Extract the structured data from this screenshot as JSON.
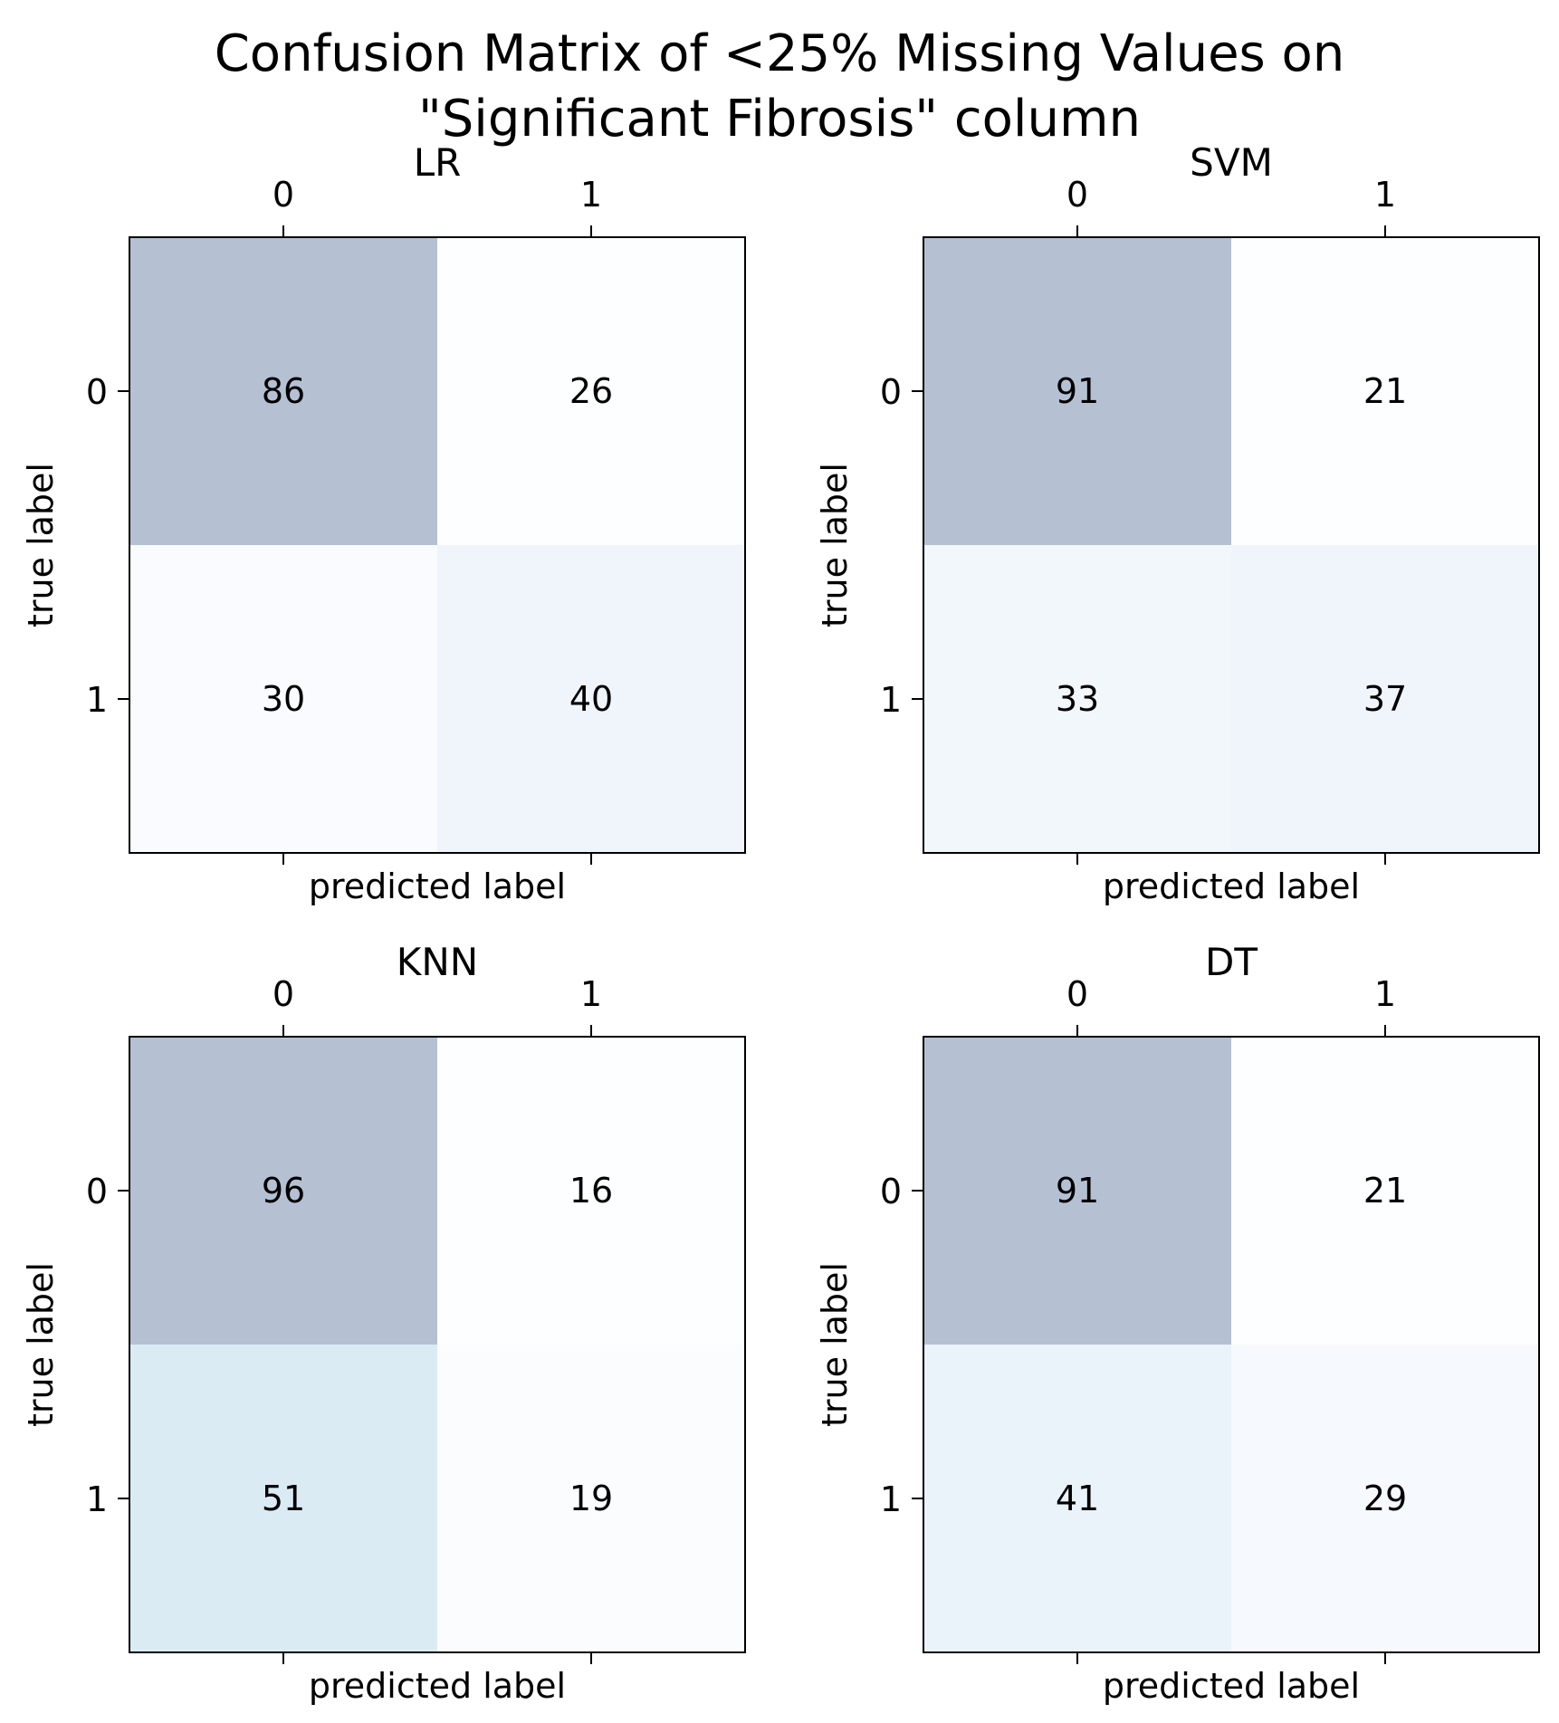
{
  "figure": {
    "title_line1": "Confusion Matrix of <25% Missing Values on",
    "title_line2": "\"Significant Fibrosis\" column"
  },
  "chart_data": [
    {
      "type": "heatmap",
      "title": "LR",
      "xlabel": "predicted label",
      "ylabel": "true label",
      "x_ticks": [
        "0",
        "1"
      ],
      "y_ticks": [
        "0",
        "1"
      ],
      "matrix": [
        [
          86,
          26
        ],
        [
          30,
          40
        ]
      ],
      "colormap": "Blues",
      "alpha": 0.3,
      "grid": false
    },
    {
      "type": "heatmap",
      "title": "SVM",
      "xlabel": "predicted label",
      "ylabel": "true label",
      "x_ticks": [
        "0",
        "1"
      ],
      "y_ticks": [
        "0",
        "1"
      ],
      "matrix": [
        [
          91,
          21
        ],
        [
          33,
          37
        ]
      ],
      "colormap": "Blues",
      "alpha": 0.3,
      "grid": false
    },
    {
      "type": "heatmap",
      "title": "KNN",
      "xlabel": "predicted label",
      "ylabel": "true label",
      "x_ticks": [
        "0",
        "1"
      ],
      "y_ticks": [
        "0",
        "1"
      ],
      "matrix": [
        [
          96,
          16
        ],
        [
          51,
          19
        ]
      ],
      "colormap": "Blues",
      "alpha": 0.3,
      "grid": false
    },
    {
      "type": "heatmap",
      "title": "DT",
      "xlabel": "predicted label",
      "ylabel": "true label",
      "x_ticks": [
        "0",
        "1"
      ],
      "y_ticks": [
        "0",
        "1"
      ],
      "matrix": [
        [
          91,
          21
        ],
        [
          41,
          29
        ]
      ],
      "colormap": "Blues",
      "alpha": 0.3,
      "grid": false
    }
  ]
}
